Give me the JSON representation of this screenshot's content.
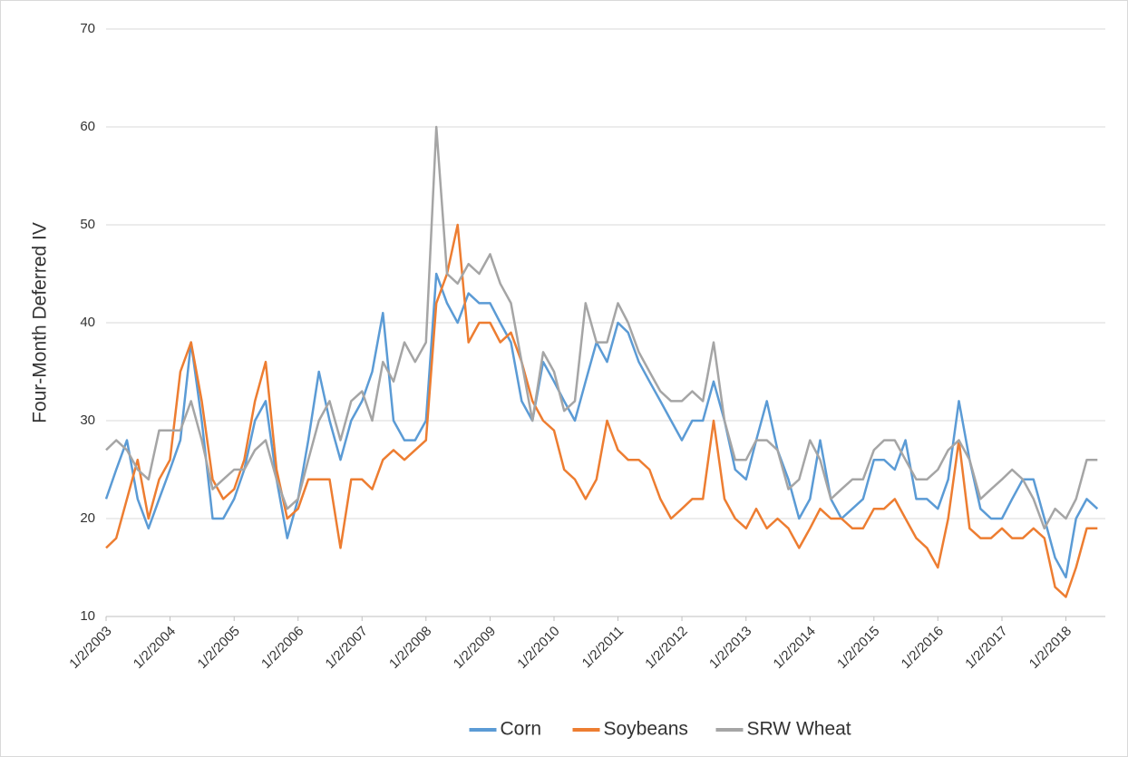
{
  "chart_data": {
    "type": "line",
    "y_label": "Four-Month Deferred IV",
    "x": [
      "1/2/2003",
      "3/1/2003",
      "5/1/2003",
      "7/1/2003",
      "9/1/2003",
      "11/1/2003",
      "1/2/2004",
      "3/1/2004",
      "5/1/2004",
      "7/1/2004",
      "9/1/2004",
      "11/1/2004",
      "1/2/2005",
      "3/1/2005",
      "5/1/2005",
      "7/1/2005",
      "9/1/2005",
      "11/1/2005",
      "1/2/2006",
      "3/1/2006",
      "5/1/2006",
      "7/1/2006",
      "9/1/2006",
      "11/1/2006",
      "1/2/2007",
      "3/1/2007",
      "5/1/2007",
      "7/1/2007",
      "9/1/2007",
      "11/1/2007",
      "1/2/2008",
      "3/1/2008",
      "5/1/2008",
      "7/1/2008",
      "9/1/2008",
      "11/1/2008",
      "1/2/2009",
      "3/1/2009",
      "5/1/2009",
      "7/1/2009",
      "9/1/2009",
      "11/1/2009",
      "1/2/2010",
      "3/1/2010",
      "5/1/2010",
      "7/1/2010",
      "9/1/2010",
      "11/1/2010",
      "1/2/2011",
      "3/1/2011",
      "5/1/2011",
      "7/1/2011",
      "9/1/2011",
      "11/1/2011",
      "1/2/2012",
      "3/1/2012",
      "5/1/2012",
      "7/1/2012",
      "9/1/2012",
      "11/1/2012",
      "1/2/2013",
      "3/1/2013",
      "5/1/2013",
      "7/1/2013",
      "9/1/2013",
      "11/1/2013",
      "1/2/2014",
      "3/1/2014",
      "5/1/2014",
      "7/1/2014",
      "9/1/2014",
      "11/1/2014",
      "1/2/2015",
      "3/1/2015",
      "5/1/2015",
      "7/1/2015",
      "9/1/2015",
      "11/1/2015",
      "1/2/2016",
      "3/1/2016",
      "5/1/2016",
      "7/1/2016",
      "9/1/2016",
      "11/1/2016",
      "1/2/2017",
      "3/1/2017",
      "5/1/2017",
      "7/1/2017",
      "9/1/2017",
      "11/1/2017",
      "1/2/2018",
      "3/1/2018",
      "5/1/2018",
      "7/1/2018"
    ],
    "series": [
      {
        "name": "Corn",
        "color": "#5b9bd5",
        "values": [
          22,
          25,
          28,
          22,
          19,
          22,
          25,
          28,
          38,
          30,
          20,
          20,
          22,
          25,
          30,
          32,
          24,
          18,
          22,
          28,
          35,
          30,
          26,
          30,
          32,
          35,
          41,
          30,
          28,
          28,
          30,
          45,
          42,
          40,
          43,
          42,
          42,
          40,
          38,
          32,
          30,
          36,
          34,
          32,
          30,
          34,
          38,
          36,
          40,
          39,
          36,
          34,
          32,
          30,
          28,
          30,
          30,
          34,
          30,
          25,
          24,
          28,
          32,
          27,
          24,
          20,
          22,
          28,
          22,
          20,
          21,
          22,
          26,
          26,
          25,
          28,
          22,
          22,
          21,
          24,
          32,
          26,
          21,
          20,
          20,
          22,
          24,
          24,
          20,
          16,
          14,
          20,
          22,
          21
        ]
      },
      {
        "name": "Soybeans",
        "color": "#ed7d31",
        "values": [
          17,
          18,
          22,
          26,
          20,
          24,
          26,
          35,
          38,
          32,
          24,
          22,
          23,
          26,
          32,
          36,
          25,
          20,
          21,
          24,
          24,
          24,
          17,
          24,
          24,
          23,
          26,
          27,
          26,
          27,
          28,
          42,
          45,
          50,
          38,
          40,
          40,
          38,
          39,
          36,
          32,
          30,
          29,
          25,
          24,
          22,
          24,
          30,
          27,
          26,
          26,
          25,
          22,
          20,
          21,
          22,
          22,
          30,
          22,
          20,
          19,
          21,
          19,
          20,
          19,
          17,
          19,
          21,
          20,
          20,
          19,
          19,
          21,
          21,
          22,
          20,
          18,
          17,
          15,
          20,
          28,
          19,
          18,
          18,
          19,
          18,
          18,
          19,
          18,
          13,
          12,
          15,
          19,
          19
        ]
      },
      {
        "name": "SRW Wheat",
        "color": "#a5a5a5",
        "values": [
          27,
          28,
          27,
          25,
          24,
          29,
          29,
          29,
          32,
          28,
          23,
          24,
          25,
          25,
          27,
          28,
          24,
          21,
          22,
          26,
          30,
          32,
          28,
          32,
          33,
          30,
          36,
          34,
          38,
          36,
          38,
          60,
          45,
          44,
          46,
          45,
          47,
          44,
          42,
          36,
          30,
          37,
          35,
          31,
          32,
          42,
          38,
          38,
          42,
          40,
          37,
          35,
          33,
          32,
          32,
          33,
          32,
          38,
          30,
          26,
          26,
          28,
          28,
          27,
          23,
          24,
          28,
          26,
          22,
          23,
          24,
          24,
          27,
          28,
          28,
          26,
          24,
          24,
          25,
          27,
          28,
          26,
          22,
          23,
          24,
          25,
          24,
          22,
          19,
          21,
          20,
          22,
          26,
          26
        ]
      }
    ],
    "xlim": [
      "1/2/2003",
      "8/15/2018"
    ],
    "xticks": [
      "1/2/2003",
      "1/2/2004",
      "1/2/2005",
      "1/2/2006",
      "1/2/2007",
      "1/2/2008",
      "1/2/2009",
      "1/2/2010",
      "1/2/2011",
      "1/2/2012",
      "1/2/2013",
      "1/2/2014",
      "1/2/2015",
      "1/2/2016",
      "1/2/2017",
      "1/2/2018"
    ],
    "ylim": [
      10,
      70
    ],
    "yticks": [
      10,
      20,
      30,
      40,
      50,
      60,
      70
    ],
    "grid": true,
    "legend": "bottom"
  }
}
